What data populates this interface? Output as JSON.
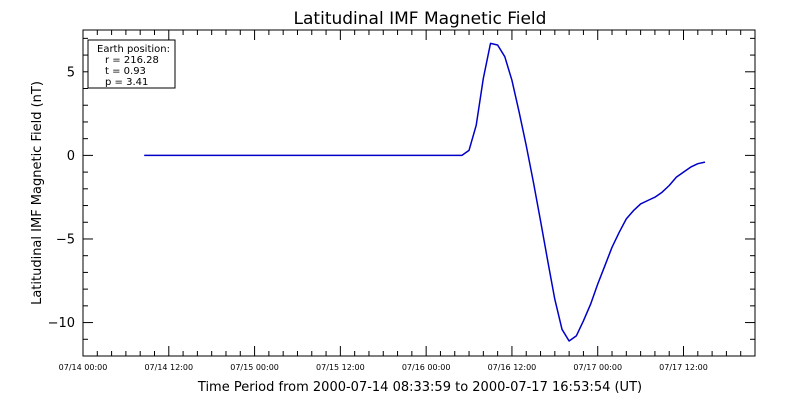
{
  "chart_data": {
    "type": "line",
    "title": "Latitudinal IMF Magnetic Field",
    "xlabel": "Time Period from 2000-07-14 08:33:59 to 2000-07-17 16:53:54 (UT)",
    "ylabel": "Latitudinal IMF Magnetic Field (nT)",
    "xlim": [
      "2000-07-14 00:00",
      "2000-07-17 22:00"
    ],
    "ylim": [
      -12,
      7.5
    ],
    "x_ticks": [
      {
        "label": "07/14 00:00",
        "t": "2000-07-14 00:00"
      },
      {
        "label": "07/14 12:00",
        "t": "2000-07-14 12:00"
      },
      {
        "label": "07/15 00:00",
        "t": "2000-07-15 00:00"
      },
      {
        "label": "07/15 12:00",
        "t": "2000-07-15 12:00"
      },
      {
        "label": "07/16 00:00",
        "t": "2000-07-16 00:00"
      },
      {
        "label": "07/16 12:00",
        "t": "2000-07-16 12:00"
      },
      {
        "label": "07/17 00:00",
        "t": "2000-07-17 00:00"
      },
      {
        "label": "07/17 12:00",
        "t": "2000-07-17 12:00"
      }
    ],
    "y_ticks": [
      {
        "label": "5",
        "v": 5
      },
      {
        "label": "0",
        "v": 0
      },
      {
        "label": "−5",
        "v": -5
      },
      {
        "label": "−10",
        "v": -10
      }
    ],
    "legend_position": "top-left",
    "legend_lines": [
      "Earth position:",
      "r = 216.28",
      "t = 0.93",
      "p = 3.41"
    ],
    "grid": false,
    "colors": {
      "line": "#0000c8",
      "axes": "#000000",
      "background": "#ffffff"
    },
    "series": [
      {
        "points": [
          [
            "2000-07-14 08:34",
            0
          ],
          [
            "2000-07-14 12:00",
            0
          ],
          [
            "2000-07-15 00:00",
            0
          ],
          [
            "2000-07-15 12:00",
            0
          ],
          [
            "2000-07-16 00:00",
            0
          ],
          [
            "2000-07-16 05:00",
            0
          ],
          [
            "2000-07-16 06:00",
            0.3
          ],
          [
            "2000-07-16 07:00",
            1.8
          ],
          [
            "2000-07-16 08:00",
            4.6
          ],
          [
            "2000-07-16 09:00",
            6.7
          ],
          [
            "2000-07-16 10:00",
            6.6
          ],
          [
            "2000-07-16 11:00",
            5.9
          ],
          [
            "2000-07-16 12:00",
            4.5
          ],
          [
            "2000-07-16 13:00",
            2.6
          ],
          [
            "2000-07-16 14:00",
            0.6
          ],
          [
            "2000-07-16 15:00",
            -1.6
          ],
          [
            "2000-07-16 16:00",
            -3.9
          ],
          [
            "2000-07-16 17:00",
            -6.3
          ],
          [
            "2000-07-16 18:00",
            -8.6
          ],
          [
            "2000-07-16 19:00",
            -10.4
          ],
          [
            "2000-07-16 20:00",
            -11.1
          ],
          [
            "2000-07-16 21:00",
            -10.8
          ],
          [
            "2000-07-16 22:00",
            -9.9
          ],
          [
            "2000-07-16 23:00",
            -8.9
          ],
          [
            "2000-07-17 00:00",
            -7.7
          ],
          [
            "2000-07-17 01:00",
            -6.6
          ],
          [
            "2000-07-17 02:00",
            -5.5
          ],
          [
            "2000-07-17 03:00",
            -4.6
          ],
          [
            "2000-07-17 04:00",
            -3.8
          ],
          [
            "2000-07-17 05:00",
            -3.3
          ],
          [
            "2000-07-17 06:00",
            -2.9
          ],
          [
            "2000-07-17 07:00",
            -2.7
          ],
          [
            "2000-07-17 08:00",
            -2.5
          ],
          [
            "2000-07-17 09:00",
            -2.2
          ],
          [
            "2000-07-17 10:00",
            -1.8
          ],
          [
            "2000-07-17 11:00",
            -1.3
          ],
          [
            "2000-07-17 12:00",
            -1.0
          ],
          [
            "2000-07-17 13:00",
            -0.7
          ],
          [
            "2000-07-17 14:00",
            -0.5
          ],
          [
            "2000-07-17 15:00",
            -0.4
          ]
        ]
      }
    ]
  }
}
